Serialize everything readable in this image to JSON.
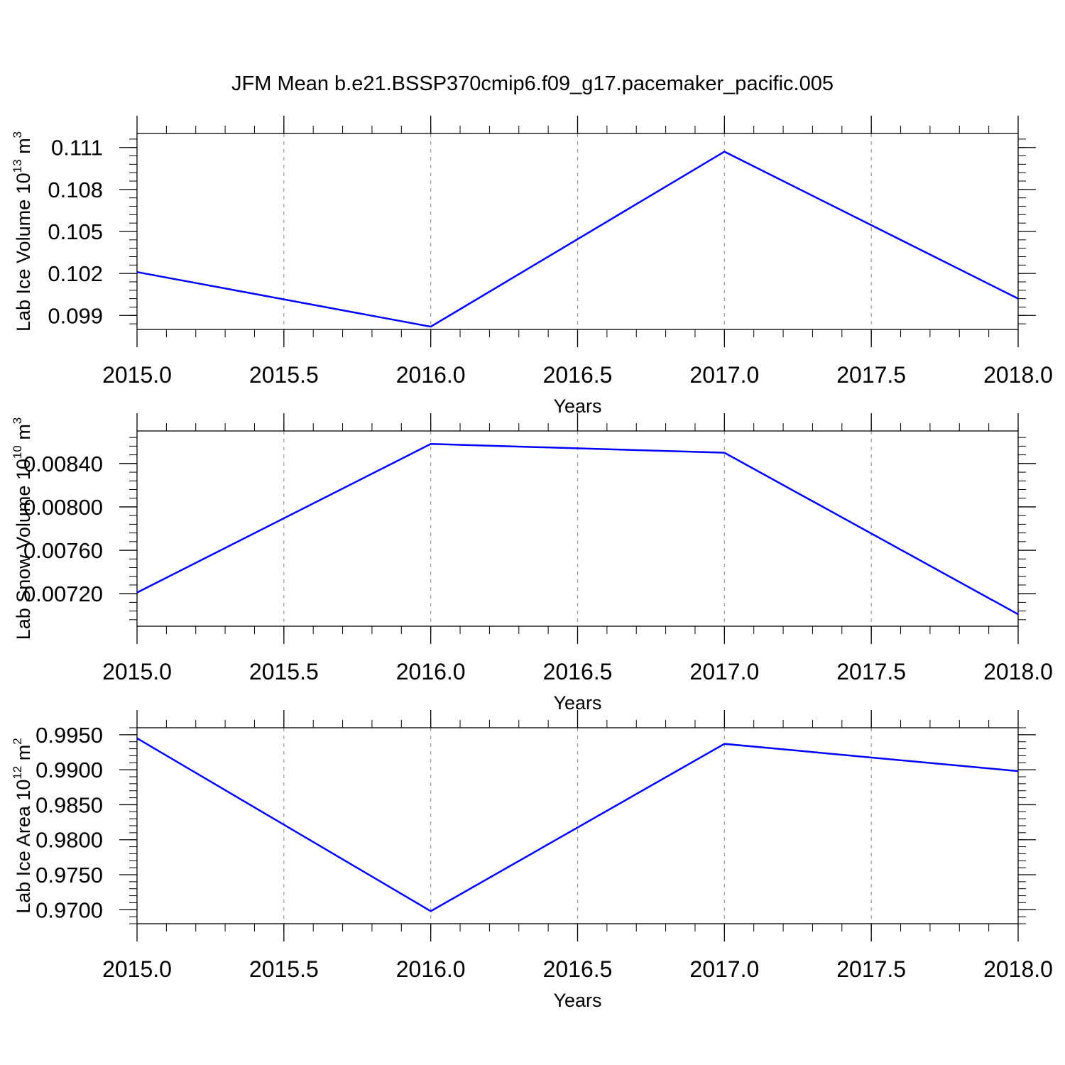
{
  "title": "JFM Mean b.e21.BSSP370cmip6.f09_g17.pacemaker_pacific.005",
  "colors": {
    "line": "#0000ff",
    "axis": "#000000",
    "grid": "#999999"
  },
  "chart_data": [
    {
      "type": "line",
      "ylabel_main": "Lab Ice Volume 10",
      "ylabel_exp": "13",
      "ylabel_unit": " m",
      "ylabel_unit_exp": "3",
      "xlabel": "Years",
      "x": [
        2015,
        2016,
        2017,
        2018
      ],
      "values": [
        0.1021,
        0.0982,
        0.1107,
        0.1002
      ],
      "xlim": [
        2015,
        2018
      ],
      "ylim": [
        0.098,
        0.112
      ],
      "xticks": [
        2015.0,
        2015.5,
        2016.0,
        2016.5,
        2017.0,
        2017.5,
        2018.0
      ],
      "xtick_labels": [
        "2015.0",
        "2015.5",
        "2016.0",
        "2016.5",
        "2017.0",
        "2017.5",
        "2018.0"
      ],
      "yticks": [
        0.099,
        0.102,
        0.105,
        0.108,
        0.111
      ],
      "ytick_labels": [
        "0.099",
        "0.102",
        "0.105",
        "0.108",
        "0.111"
      ],
      "grid": "x-dashed"
    },
    {
      "type": "line",
      "ylabel_main": "Lab Snow Volume 10",
      "ylabel_exp": "10",
      "ylabel_unit": " m",
      "ylabel_unit_exp": "3",
      "xlabel": "Years",
      "x": [
        2015,
        2016,
        2017,
        2018
      ],
      "values": [
        0.00721,
        0.00858,
        0.0085,
        0.00701
      ],
      "xlim": [
        2015,
        2018
      ],
      "ylim": [
        0.0069,
        0.0087
      ],
      "xticks": [
        2015.0,
        2015.5,
        2016.0,
        2016.5,
        2017.0,
        2017.5,
        2018.0
      ],
      "xtick_labels": [
        "2015.0",
        "2015.5",
        "2016.0",
        "2016.5",
        "2017.0",
        "2017.5",
        "2018.0"
      ],
      "yticks": [
        0.0072,
        0.0076,
        0.008,
        0.0084
      ],
      "ytick_labels": [
        "0.00720",
        "0.00760",
        "0.00800",
        "0.00840"
      ],
      "grid": "x-dashed"
    },
    {
      "type": "line",
      "ylabel_main": "Lab Ice Area 10",
      "ylabel_exp": "12",
      "ylabel_unit": " m",
      "ylabel_unit_exp": "2",
      "xlabel": "Years",
      "x": [
        2015,
        2016,
        2017,
        2018
      ],
      "values": [
        0.9945,
        0.9698,
        0.9937,
        0.9898
      ],
      "xlim": [
        2015,
        2018
      ],
      "ylim": [
        0.968,
        0.996
      ],
      "xticks": [
        2015.0,
        2015.5,
        2016.0,
        2016.5,
        2017.0,
        2017.5,
        2018.0
      ],
      "xtick_labels": [
        "2015.0",
        "2015.5",
        "2016.0",
        "2016.5",
        "2017.0",
        "2017.5",
        "2018.0"
      ],
      "yticks": [
        0.97,
        0.975,
        0.98,
        0.985,
        0.99,
        0.995
      ],
      "ytick_labels": [
        "0.9700",
        "0.9750",
        "0.9800",
        "0.9850",
        "0.9900",
        "0.9950"
      ],
      "grid": "x-dashed"
    }
  ]
}
